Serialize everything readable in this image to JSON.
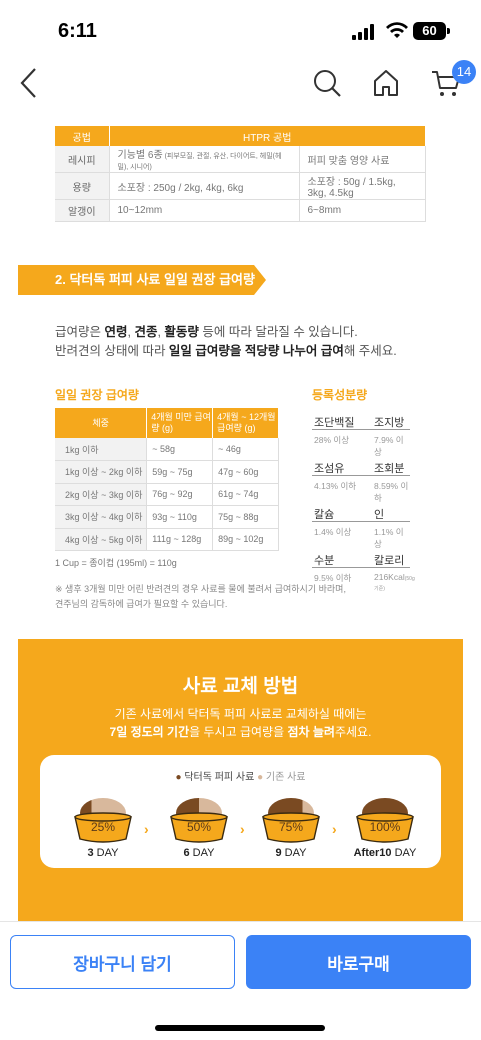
{
  "status": {
    "time": "6:11",
    "battery": "60"
  },
  "nav": {
    "cart_count": "14"
  },
  "spec": {
    "header": [
      "공법",
      "HTPR 공법"
    ],
    "rows": [
      {
        "key": "레시피",
        "a": "기능별 6종",
        "a_small": " (피부모질, 관절, 유산, 다이어트, 헤밀(헤밀), 시니어)",
        "b": "퍼피 맞춤 영양 사료"
      },
      {
        "key": "용량",
        "a": "소포장 : 250g / 2kg, 4kg, 6kg",
        "a_small": "",
        "b": "소포장 : 50g / 1.5kg, 3kg, 4.5kg"
      },
      {
        "key": "알갱이",
        "a": "10~12mm",
        "a_small": "",
        "b": "6~8mm"
      }
    ]
  },
  "section_title": "2. 닥터독 퍼피 사료 일일 권장 급여량",
  "intro": {
    "l1_a": "급여량은 ",
    "l1_b": "연령",
    "l1_c": ", ",
    "l1_d": "견종",
    "l1_e": ", ",
    "l1_f": "활동량",
    "l1_g": " 등에 따라 달라질 수 있습니다.",
    "l2_a": "반려견의 상태에 따라 ",
    "l2_b": "일일 급여량을 적당량 나누어 급여",
    "l2_c": "해 주세요."
  },
  "feeding": {
    "title": "일일 권장 급여량",
    "headers": [
      "체중",
      "4개월 미만 급여량 (g)",
      "4개월 ~ 12개월 급여량 (g)"
    ],
    "rows": [
      [
        "1kg 이하",
        "~ 58g",
        "~ 46g"
      ],
      [
        "1kg 이상 ~ 2kg 이하",
        "59g ~ 75g",
        "47g ~ 60g"
      ],
      [
        "2kg 이상 ~ 3kg 이하",
        "76g ~ 92g",
        "61g ~ 74g"
      ],
      [
        "3kg 이상 ~ 4kg 이하",
        "93g ~ 110g",
        "75g ~ 88g"
      ],
      [
        "4kg 이상 ~ 5kg 이하",
        "111g ~ 128g",
        "89g ~ 102g"
      ]
    ],
    "cup_note": "1 Cup = 종이컵 (195ml) = 110g"
  },
  "nutrition": {
    "title": "등록성분량",
    "items": [
      {
        "a": "조단백질",
        "b": "조지방",
        "va": "28% 이상",
        "vb": "7.9% 이상",
        "vb_small": ""
      },
      {
        "a": "조섬유",
        "b": "조회분",
        "va": "4.13% 이하",
        "vb": "8.59% 이하",
        "vb_small": ""
      },
      {
        "a": "칼슘",
        "b": "인",
        "va": "1.4% 이상",
        "vb": "1.1% 이상",
        "vb_small": ""
      },
      {
        "a": "수분",
        "b": "칼로리",
        "va": "9.5% 이하",
        "vb": "216Kcal",
        "vb_small": "(50g 기준)"
      }
    ]
  },
  "note": {
    "l1": "※ 생후 3개월 미만 어린 반려견의 경우 사료를 물에 불려서 급여하시기 바라며,",
    "l2": "견주님의 감독하에 급여가 필요할 수 있습니다."
  },
  "change": {
    "title": "사료 교체 방법",
    "desc1": "기존 사료에서 닥터독 퍼피 사료로 교체하실 때에는",
    "desc2_a": "7일 정도의 기간",
    "desc2_b": "을 두시고 급여량을 ",
    "desc2_c": "점차 늘려",
    "desc2_d": "주세요.",
    "legend_new": "닥터독 퍼피 사료",
    "legend_old": "기존 사료",
    "steps": [
      {
        "pct": "25%",
        "day_num": "3",
        "day_label": " DAY",
        "ratio": 0.25
      },
      {
        "pct": "50%",
        "day_num": "6",
        "day_label": " DAY",
        "ratio": 0.5
      },
      {
        "pct": "75%",
        "day_num": "9",
        "day_label": " DAY",
        "ratio": 0.75
      },
      {
        "pct": "100%",
        "day_num": "After10",
        "day_label": " DAY",
        "ratio": 1.0
      }
    ],
    "colors": {
      "new": "#7a4a22",
      "old": "#d8b89c",
      "bowl": "#f5a81c"
    }
  },
  "bottom": {
    "cart_label": "장바구니 담기",
    "buy_label": "바로구매"
  }
}
